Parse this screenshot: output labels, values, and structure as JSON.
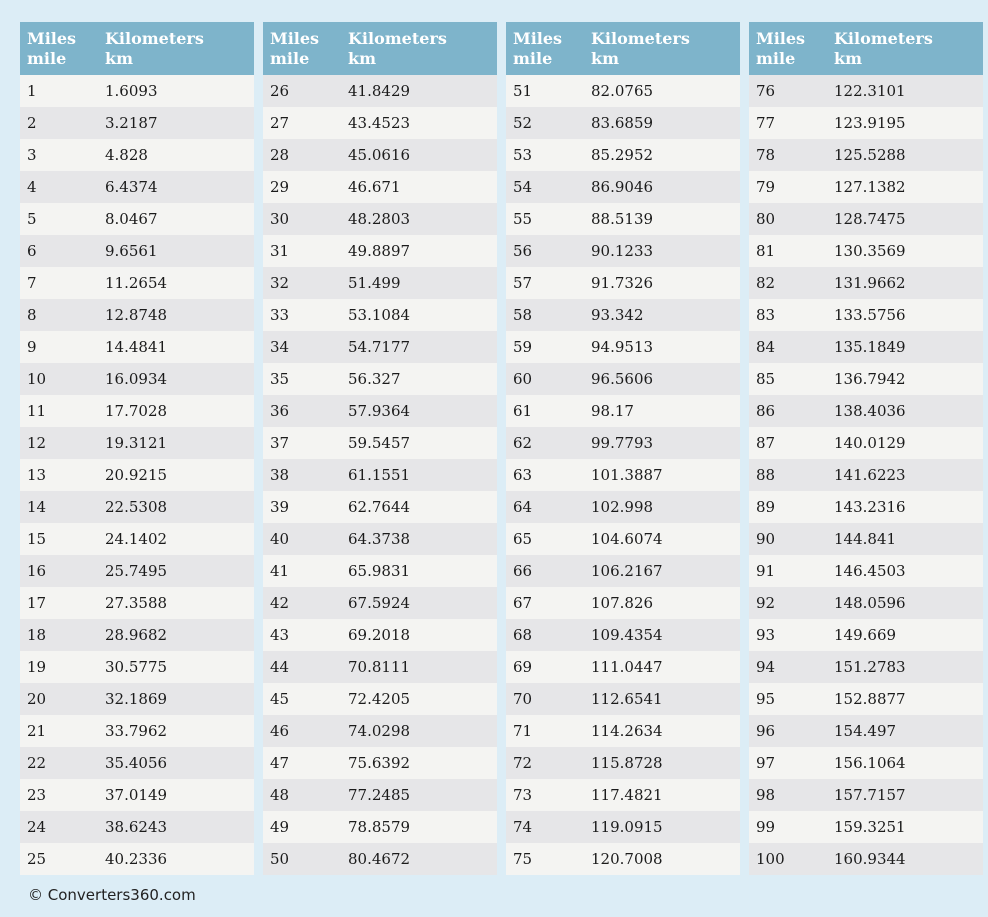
{
  "colors": {
    "page_bg": "#dcedf6",
    "header_bg": "#7eb4cb",
    "header_text": "#ffffff",
    "row_light": "#f4f4f2",
    "row_dark": "#e6e6e8",
    "cell_text": "#1b1b1b",
    "footer_text": "#222222"
  },
  "header": {
    "miles_line1": "Miles",
    "miles_line2": "mile",
    "km_line1": "Kilometers",
    "km_line2": "km"
  },
  "footer": {
    "copyright": "© Converters360.com"
  },
  "table_data": {
    "type": "table",
    "title": "Miles to Kilometers conversion table",
    "columns": [
      "Miles (mile)",
      "Kilometers (km)"
    ],
    "groups": [
      [
        {
          "mile": "1",
          "km": "1.6093"
        },
        {
          "mile": "2",
          "km": "3.2187"
        },
        {
          "mile": "3",
          "km": "4.828"
        },
        {
          "mile": "4",
          "km": "6.4374"
        },
        {
          "mile": "5",
          "km": "8.0467"
        },
        {
          "mile": "6",
          "km": "9.6561"
        },
        {
          "mile": "7",
          "km": "11.2654"
        },
        {
          "mile": "8",
          "km": "12.8748"
        },
        {
          "mile": "9",
          "km": "14.4841"
        },
        {
          "mile": "10",
          "km": "16.0934"
        },
        {
          "mile": "11",
          "km": "17.7028"
        },
        {
          "mile": "12",
          "km": "19.3121"
        },
        {
          "mile": "13",
          "km": "20.9215"
        },
        {
          "mile": "14",
          "km": "22.5308"
        },
        {
          "mile": "15",
          "km": "24.1402"
        },
        {
          "mile": "16",
          "km": "25.7495"
        },
        {
          "mile": "17",
          "km": "27.3588"
        },
        {
          "mile": "18",
          "km": "28.9682"
        },
        {
          "mile": "19",
          "km": "30.5775"
        },
        {
          "mile": "20",
          "km": "32.1869"
        },
        {
          "mile": "21",
          "km": "33.7962"
        },
        {
          "mile": "22",
          "km": "35.4056"
        },
        {
          "mile": "23",
          "km": "37.0149"
        },
        {
          "mile": "24",
          "km": "38.6243"
        },
        {
          "mile": "25",
          "km": "40.2336"
        }
      ],
      [
        {
          "mile": "26",
          "km": "41.8429"
        },
        {
          "mile": "27",
          "km": "43.4523"
        },
        {
          "mile": "28",
          "km": "45.0616"
        },
        {
          "mile": "29",
          "km": "46.671"
        },
        {
          "mile": "30",
          "km": "48.2803"
        },
        {
          "mile": "31",
          "km": "49.8897"
        },
        {
          "mile": "32",
          "km": "51.499"
        },
        {
          "mile": "33",
          "km": "53.1084"
        },
        {
          "mile": "34",
          "km": "54.7177"
        },
        {
          "mile": "35",
          "km": "56.327"
        },
        {
          "mile": "36",
          "km": "57.9364"
        },
        {
          "mile": "37",
          "km": "59.5457"
        },
        {
          "mile": "38",
          "km": "61.1551"
        },
        {
          "mile": "39",
          "km": "62.7644"
        },
        {
          "mile": "40",
          "km": "64.3738"
        },
        {
          "mile": "41",
          "km": "65.9831"
        },
        {
          "mile": "42",
          "km": "67.5924"
        },
        {
          "mile": "43",
          "km": "69.2018"
        },
        {
          "mile": "44",
          "km": "70.8111"
        },
        {
          "mile": "45",
          "km": "72.4205"
        },
        {
          "mile": "46",
          "km": "74.0298"
        },
        {
          "mile": "47",
          "km": "75.6392"
        },
        {
          "mile": "48",
          "km": "77.2485"
        },
        {
          "mile": "49",
          "km": "78.8579"
        },
        {
          "mile": "50",
          "km": "80.4672"
        }
      ],
      [
        {
          "mile": "51",
          "km": "82.0765"
        },
        {
          "mile": "52",
          "km": "83.6859"
        },
        {
          "mile": "53",
          "km": "85.2952"
        },
        {
          "mile": "54",
          "km": "86.9046"
        },
        {
          "mile": "55",
          "km": "88.5139"
        },
        {
          "mile": "56",
          "km": "90.1233"
        },
        {
          "mile": "57",
          "km": "91.7326"
        },
        {
          "mile": "58",
          "km": "93.342"
        },
        {
          "mile": "59",
          "km": "94.9513"
        },
        {
          "mile": "60",
          "km": "96.5606"
        },
        {
          "mile": "61",
          "km": "98.17"
        },
        {
          "mile": "62",
          "km": "99.7793"
        },
        {
          "mile": "63",
          "km": "101.3887"
        },
        {
          "mile": "64",
          "km": "102.998"
        },
        {
          "mile": "65",
          "km": "104.6074"
        },
        {
          "mile": "66",
          "km": "106.2167"
        },
        {
          "mile": "67",
          "km": "107.826"
        },
        {
          "mile": "68",
          "km": "109.4354"
        },
        {
          "mile": "69",
          "km": "111.0447"
        },
        {
          "mile": "70",
          "km": "112.6541"
        },
        {
          "mile": "71",
          "km": "114.2634"
        },
        {
          "mile": "72",
          "km": "115.8728"
        },
        {
          "mile": "73",
          "km": "117.4821"
        },
        {
          "mile": "74",
          "km": "119.0915"
        },
        {
          "mile": "75",
          "km": "120.7008"
        }
      ],
      [
        {
          "mile": "76",
          "km": "122.3101"
        },
        {
          "mile": "77",
          "km": "123.9195"
        },
        {
          "mile": "78",
          "km": "125.5288"
        },
        {
          "mile": "79",
          "km": "127.1382"
        },
        {
          "mile": "80",
          "km": "128.7475"
        },
        {
          "mile": "81",
          "km": "130.3569"
        },
        {
          "mile": "82",
          "km": "131.9662"
        },
        {
          "mile": "83",
          "km": "133.5756"
        },
        {
          "mile": "84",
          "km": "135.1849"
        },
        {
          "mile": "85",
          "km": "136.7942"
        },
        {
          "mile": "86",
          "km": "138.4036"
        },
        {
          "mile": "87",
          "km": "140.0129"
        },
        {
          "mile": "88",
          "km": "141.6223"
        },
        {
          "mile": "89",
          "km": "143.2316"
        },
        {
          "mile": "90",
          "km": "144.841"
        },
        {
          "mile": "91",
          "km": "146.4503"
        },
        {
          "mile": "92",
          "km": "148.0596"
        },
        {
          "mile": "93",
          "km": "149.669"
        },
        {
          "mile": "94",
          "km": "151.2783"
        },
        {
          "mile": "95",
          "km": "152.8877"
        },
        {
          "mile": "96",
          "km": "154.497"
        },
        {
          "mile": "97",
          "km": "156.1064"
        },
        {
          "mile": "98",
          "km": "157.7157"
        },
        {
          "mile": "99",
          "km": "159.3251"
        },
        {
          "mile": "100",
          "km": "160.9344"
        }
      ]
    ]
  }
}
